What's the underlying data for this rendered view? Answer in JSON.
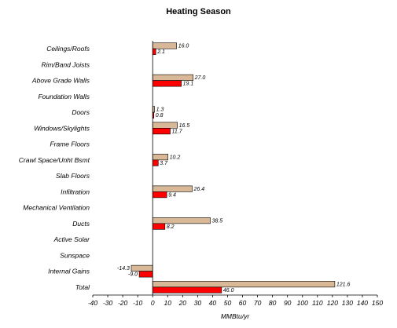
{
  "chart_data": {
    "type": "bar",
    "orientation": "horizontal",
    "title": "Heating Season",
    "xlabel": "MMBtu/yr",
    "ylabel": "",
    "xlim": [
      -40,
      150
    ],
    "x_ticks": [
      -40,
      -30,
      -20,
      -10,
      0,
      10,
      20,
      30,
      40,
      50,
      60,
      70,
      80,
      90,
      100,
      110,
      120,
      130,
      140,
      150
    ],
    "grid": false,
    "legend": "none",
    "categories": [
      "Ceilings/Roofs",
      "Rim/Band Joists",
      "Above Grade Walls",
      "Foundation Walls",
      "Doors",
      "Windows/Skylights",
      "Frame Floors",
      "Crawl Space/Unht Bsmt",
      "Slab Floors",
      "Infiltration",
      "Mechanical Ventilation",
      "Ducts",
      "Active Solar",
      "Sunspace",
      "Internal Gains",
      "Total"
    ],
    "series": [
      {
        "color": "#d8b896",
        "values": [
          16.0,
          null,
          27.0,
          null,
          1.3,
          16.5,
          null,
          10.2,
          null,
          26.4,
          null,
          38.5,
          null,
          null,
          -14.3,
          121.6
        ],
        "labels": [
          "16.0",
          "",
          "27.0",
          "",
          "1.3",
          "16.5",
          "",
          "10.2",
          "",
          "26.4",
          "",
          "38.5",
          "",
          "",
          "-14.3",
          "121.6"
        ]
      },
      {
        "color": "#ff0000",
        "values": [
          2.1,
          null,
          19.1,
          null,
          0.8,
          11.7,
          null,
          3.7,
          null,
          9.4,
          null,
          8.2,
          null,
          null,
          -9.0,
          46.0
        ],
        "labels": [
          "2.1",
          "",
          "19.1",
          "",
          "0.8",
          "11.7",
          "",
          "3.7",
          "",
          "9.4",
          "",
          "8.2",
          "",
          "",
          "-9.0",
          "46.0"
        ]
      }
    ]
  }
}
